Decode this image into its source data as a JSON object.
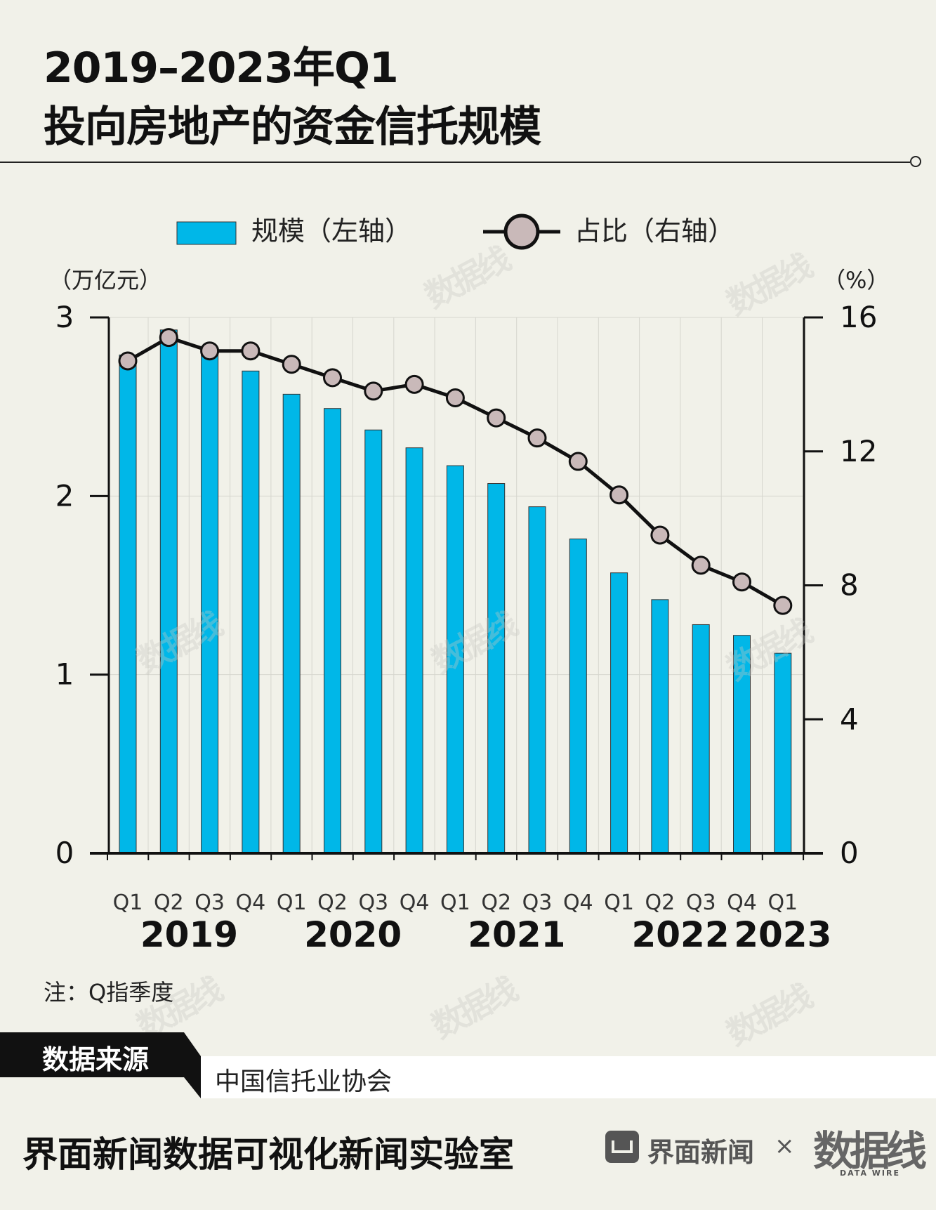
{
  "header": {
    "title_line1": "2019–2023年Q1",
    "title_line2": "投向房地产的资金信托规模"
  },
  "legend": {
    "bar_label": "规模（左轴）",
    "line_label": "占比（右轴）"
  },
  "colors": {
    "background": "#f1f1e9",
    "bar": "#00b7e8",
    "line": "#111111",
    "marker_fill": "#c9b9b9"
  },
  "chart_data": {
    "type": "bar",
    "title": "2019–2023年Q1投向房地产的资金信托规模",
    "quarters": [
      "Q1",
      "Q2",
      "Q3",
      "Q4",
      "Q1",
      "Q2",
      "Q3",
      "Q4",
      "Q1",
      "Q2",
      "Q3",
      "Q4",
      "Q1",
      "Q2",
      "Q3",
      "Q4",
      "Q1"
    ],
    "years": [
      {
        "label": "2019",
        "start": 0,
        "end": 3
      },
      {
        "label": "2020",
        "start": 4,
        "end": 7
      },
      {
        "label": "2021",
        "start": 8,
        "end": 11
      },
      {
        "label": "2022",
        "start": 12,
        "end": 15
      },
      {
        "label": "2023",
        "start": 16,
        "end": 16
      }
    ],
    "series": [
      {
        "name": "规模（左轴）",
        "type": "bar",
        "axis": "left",
        "values": [
          2.79,
          2.93,
          2.82,
          2.7,
          2.57,
          2.49,
          2.37,
          2.27,
          2.17,
          2.07,
          1.94,
          1.76,
          1.57,
          1.42,
          1.28,
          1.22,
          1.12
        ]
      },
      {
        "name": "占比（右轴）",
        "type": "line",
        "axis": "right",
        "values": [
          14.7,
          15.4,
          15.0,
          15.0,
          14.6,
          14.2,
          13.8,
          14.0,
          13.6,
          13.0,
          12.4,
          11.7,
          10.7,
          9.5,
          8.6,
          8.1,
          7.4
        ]
      }
    ],
    "left_axis": {
      "label": "（万亿元）",
      "min": 0,
      "max": 3,
      "ticks": [
        0,
        1,
        2,
        3
      ]
    },
    "right_axis": {
      "label": "（%）",
      "min": 0,
      "max": 16,
      "ticks": [
        0,
        4,
        8,
        12,
        16
      ]
    },
    "grid": true,
    "legend_position": "top"
  },
  "note": "注：Q指季度",
  "source": {
    "label": "数据来源",
    "value": "中国信托业协会"
  },
  "footer": {
    "title": "界面新闻数据可视化新闻实验室",
    "brand_name": "界面新闻",
    "times": "×",
    "logo_text": "数据线",
    "logo_sub": "DATA WIRE"
  }
}
